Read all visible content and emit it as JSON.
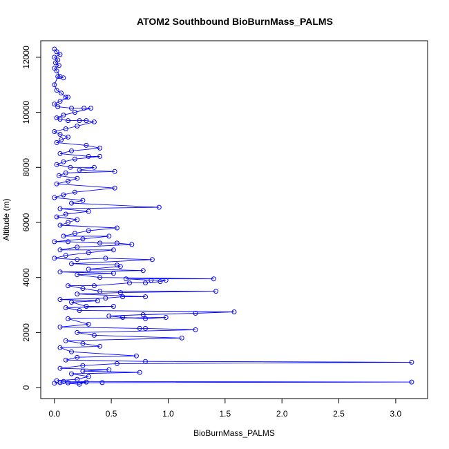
{
  "chart_data": {
    "type": "line",
    "title": "ATOM2 Southbound BioBurnMass_PALMS",
    "xlabel": "BioBurnMass_PALMS",
    "ylabel": "Altitude (m)",
    "xlim": [
      -0.12,
      3.28
    ],
    "ylim": [
      -400,
      12600
    ],
    "x_ticks": [
      0.0,
      0.5,
      1.0,
      1.5,
      2.0,
      2.5,
      3.0
    ],
    "x_tick_labels": [
      "0.0",
      "0.5",
      "1.0",
      "1.5",
      "2.0",
      "2.5",
      "3.0"
    ],
    "y_ticks": [
      0,
      2000,
      4000,
      6000,
      8000,
      10000,
      12000
    ],
    "y_tick_labels": [
      "0",
      "2000",
      "4000",
      "6000",
      "8000",
      "10000",
      "12000"
    ],
    "grid": false,
    "legend": "none",
    "series": [
      {
        "color": "#0000ff",
        "marker": "open-circle",
        "points": [
          [
            0.0,
            12300
          ],
          [
            0.02,
            12200
          ],
          [
            0.05,
            12100
          ],
          [
            0.0,
            12000
          ],
          [
            0.03,
            11900
          ],
          [
            0.01,
            11800
          ],
          [
            0.04,
            11700
          ],
          [
            0.0,
            11600
          ],
          [
            0.02,
            11500
          ],
          [
            0.05,
            11300
          ],
          [
            0.08,
            11250
          ],
          [
            0.03,
            11300
          ],
          [
            0.0,
            11000
          ],
          [
            0.02,
            10800
          ],
          [
            0.06,
            10700
          ],
          [
            0.1,
            10550
          ],
          [
            0.12,
            10550
          ],
          [
            0.05,
            10400
          ],
          [
            0.0,
            10300
          ],
          [
            0.03,
            10200
          ],
          [
            0.15,
            10150
          ],
          [
            0.26,
            10150
          ],
          [
            0.32,
            10150
          ],
          [
            0.18,
            10000
          ],
          [
            0.08,
            9900
          ],
          [
            0.02,
            9800
          ],
          [
            0.05,
            9750
          ],
          [
            0.12,
            9700
          ],
          [
            0.22,
            9700
          ],
          [
            0.28,
            9700
          ],
          [
            0.35,
            9650
          ],
          [
            0.2,
            9500
          ],
          [
            0.1,
            9400
          ],
          [
            0.0,
            9300
          ],
          [
            0.05,
            9200
          ],
          [
            0.12,
            9100
          ],
          [
            0.06,
            9000
          ],
          [
            0.02,
            8900
          ],
          [
            0.28,
            8800
          ],
          [
            0.4,
            8700
          ],
          [
            0.15,
            8600
          ],
          [
            0.05,
            8500
          ],
          [
            0.3,
            8400
          ],
          [
            0.4,
            8400
          ],
          [
            0.18,
            8300
          ],
          [
            0.08,
            8200
          ],
          [
            0.02,
            8100
          ],
          [
            0.14,
            8000
          ],
          [
            0.35,
            8000
          ],
          [
            0.22,
            7900
          ],
          [
            0.53,
            7850
          ],
          [
            0.1,
            7800
          ],
          [
            0.04,
            7700
          ],
          [
            0.2,
            7600
          ],
          [
            0.12,
            7500
          ],
          [
            0.02,
            7400
          ],
          [
            0.53,
            7250
          ],
          [
            0.18,
            7100
          ],
          [
            0.08,
            7000
          ],
          [
            0.0,
            6900
          ],
          [
            0.25,
            6800
          ],
          [
            0.15,
            6700
          ],
          [
            0.92,
            6550
          ],
          [
            0.05,
            6500
          ],
          [
            0.3,
            6400
          ],
          [
            0.1,
            6300
          ],
          [
            0.02,
            6200
          ],
          [
            0.2,
            6100
          ],
          [
            0.12,
            6000
          ],
          [
            0.05,
            5900
          ],
          [
            0.55,
            5800
          ],
          [
            0.3,
            5700
          ],
          [
            0.18,
            5600
          ],
          [
            0.08,
            5500
          ],
          [
            0.48,
            5500
          ],
          [
            0.25,
            5400
          ],
          [
            0.0,
            5300
          ],
          [
            0.12,
            5300
          ],
          [
            0.4,
            5250
          ],
          [
            0.55,
            5250
          ],
          [
            0.68,
            5200
          ],
          [
            0.2,
            5100
          ],
          [
            0.05,
            5000
          ],
          [
            0.52,
            5000
          ],
          [
            0.3,
            4900
          ],
          [
            0.1,
            4800
          ],
          [
            0.0,
            4700
          ],
          [
            0.2,
            4650
          ],
          [
            0.45,
            4700
          ],
          [
            0.86,
            4650
          ],
          [
            0.15,
            4500
          ],
          [
            0.55,
            4450
          ],
          [
            0.58,
            4400
          ],
          [
            0.3,
            4300
          ],
          [
            0.78,
            4250
          ],
          [
            0.05,
            4200
          ],
          [
            0.52,
            4150
          ],
          [
            0.2,
            4100
          ],
          [
            0.4,
            4000
          ],
          [
            1.4,
            3950
          ],
          [
            0.63,
            3950
          ],
          [
            0.85,
            3900
          ],
          [
            0.98,
            3900
          ],
          [
            0.93,
            3850
          ],
          [
            0.8,
            3800
          ],
          [
            0.66,
            3800
          ],
          [
            0.35,
            3700
          ],
          [
            0.12,
            3700
          ],
          [
            0.25,
            3600
          ],
          [
            0.4,
            3500
          ],
          [
            1.42,
            3500
          ],
          [
            0.58,
            3450
          ],
          [
            0.2,
            3400
          ],
          [
            0.8,
            3300
          ],
          [
            0.6,
            3300
          ],
          [
            0.45,
            3250
          ],
          [
            0.05,
            3200
          ],
          [
            0.38,
            3150
          ],
          [
            0.15,
            3100
          ],
          [
            0.28,
            2950
          ],
          [
            0.52,
            2950
          ],
          [
            0.1,
            2900
          ],
          [
            0.22,
            2800
          ],
          [
            1.58,
            2750
          ],
          [
            1.24,
            2700
          ],
          [
            0.78,
            2650
          ],
          [
            0.48,
            2600
          ],
          [
            0.6,
            2550
          ],
          [
            0.8,
            2500
          ],
          [
            0.98,
            2550
          ],
          [
            0.12,
            2500
          ],
          [
            0.3,
            2300
          ],
          [
            0.05,
            2200
          ],
          [
            0.75,
            2150
          ],
          [
            0.8,
            2150
          ],
          [
            1.24,
            2100
          ],
          [
            0.2,
            2000
          ],
          [
            0.35,
            1900
          ],
          [
            1.12,
            1800
          ],
          [
            0.1,
            1700
          ],
          [
            0.25,
            1600
          ],
          [
            0.4,
            1500
          ],
          [
            0.05,
            1450
          ],
          [
            0.15,
            1300
          ],
          [
            0.72,
            1150
          ],
          [
            0.2,
            1100
          ],
          [
            0.1,
            1000
          ],
          [
            0.8,
            950
          ],
          [
            3.14,
            920
          ],
          [
            0.55,
            870
          ],
          [
            0.25,
            800
          ],
          [
            0.05,
            700
          ],
          [
            0.48,
            650
          ],
          [
            0.25,
            600
          ],
          [
            0.75,
            550
          ],
          [
            0.15,
            500
          ],
          [
            0.3,
            400
          ],
          [
            0.2,
            300
          ],
          [
            0.02,
            250
          ],
          [
            0.08,
            220
          ],
          [
            3.14,
            200
          ],
          [
            0.42,
            180
          ],
          [
            0.12,
            170
          ],
          [
            0.0,
            160
          ],
          [
            0.28,
            200
          ],
          [
            0.22,
            120
          ],
          [
            0.05,
            180
          ]
        ]
      }
    ]
  }
}
